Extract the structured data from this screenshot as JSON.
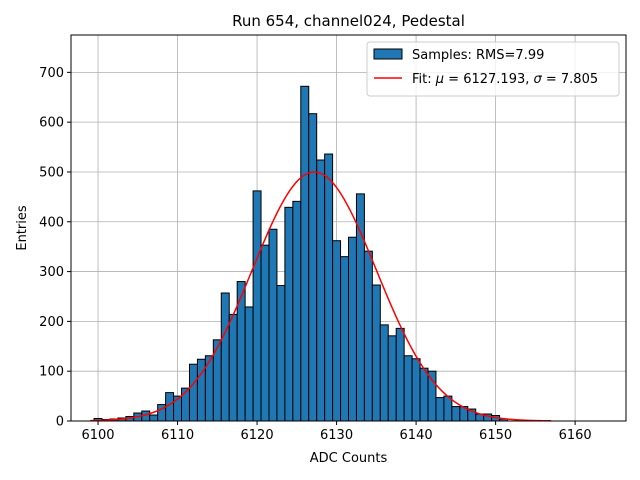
{
  "chart_data": {
    "type": "bar",
    "title": "Run 654, channel024, Pedestal",
    "xlabel": "ADC Counts",
    "ylabel": "Entries",
    "xlim": [
      6096.6,
      6166.4
    ],
    "ylim": [
      0,
      775
    ],
    "xticks": [
      6100,
      6110,
      6120,
      6130,
      6140,
      6150,
      6160
    ],
    "yticks": [
      0,
      100,
      200,
      300,
      400,
      500,
      600,
      700
    ],
    "grid": true,
    "legend_position": "top-right",
    "colors": {
      "bars": "#1f77b4",
      "bar_edge": "#000000",
      "fit": "#ff0000",
      "grid": "#b0b0b0"
    },
    "histogram": {
      "name": "Samples: RMS=7.99",
      "bin_width": 1,
      "bin_start": 6100,
      "counts": [
        5,
        3,
        4,
        6,
        9,
        16,
        20,
        12,
        33,
        57,
        50,
        66,
        114,
        124,
        131,
        163,
        257,
        214,
        280,
        229,
        462,
        353,
        385,
        272,
        429,
        441,
        672,
        617,
        524,
        536,
        362,
        330,
        369,
        456,
        341,
        273,
        193,
        171,
        186,
        131,
        125,
        106,
        100,
        47,
        50,
        29,
        29,
        24,
        14,
        14,
        11,
        4
      ]
    },
    "fit": {
      "name": "Fit: μ = 6127.193, σ = 7.805",
      "label_prefix": "Fit: ",
      "mu_symbol": "μ",
      "mu_text": " = 6127.193, ",
      "sigma_symbol": "σ",
      "sigma_text": " = 7.805",
      "mu": 6127.193,
      "sigma": 7.805,
      "amplitude": 500,
      "x_range": [
        6099,
        6157
      ]
    }
  }
}
